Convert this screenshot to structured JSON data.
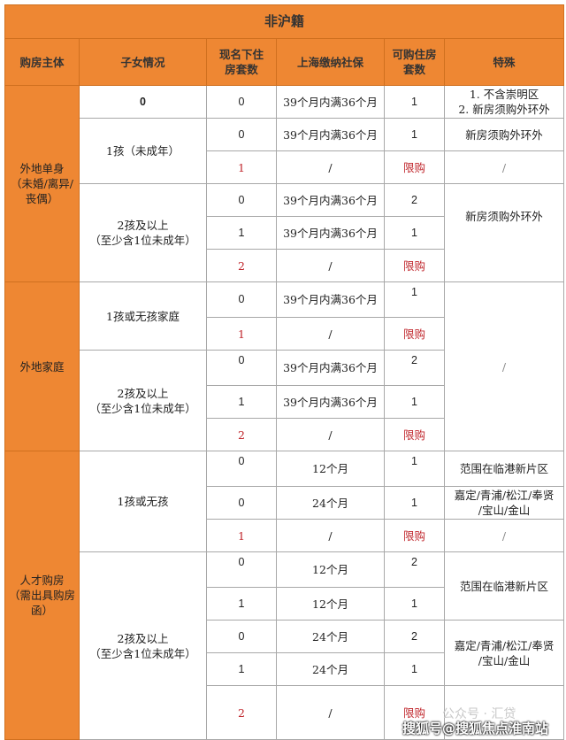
{
  "title": "非沪籍",
  "headers": [
    "购房主体",
    "子女情况",
    "现名下住房套数",
    "上海缴纳社保",
    "可购住房套数",
    "特殊"
  ],
  "subjects": [
    "外地单身\n（未婚/离异/丧偶）",
    "外地家庭",
    "人才购房\n（需出具购房函）"
  ],
  "children": {
    "none": "0",
    "one_minor": "1孩（未成年）",
    "two_plus": "2孩及以上\n（至少含1位未成年）",
    "one_or_none_family": "1孩或无孩家庭",
    "one_or_none": "1孩或无孩"
  },
  "special": {
    "no_chongming": "1. 不含崇明区\n2. 新房须购外环外",
    "outer_ring": "新房须购外环外",
    "slash": "/",
    "lingang": "范围在临港新片区",
    "districts": "嘉定/青浦/松江/奉贤\n/宝山/金山"
  },
  "rows": [
    {
      "owned": "0",
      "social": "39个月内满36个月",
      "allowed": "1"
    },
    {
      "owned": "0",
      "social": "39个月内满36个月",
      "allowed": "1"
    },
    {
      "owned": "1",
      "social": "/",
      "allowed": "限购"
    },
    {
      "owned": "0",
      "social": "39个月内满36个月",
      "allowed": "2"
    },
    {
      "owned": "1",
      "social": "39个月内满36个月",
      "allowed": "1"
    },
    {
      "owned": "2",
      "social": "/",
      "allowed": "限购"
    },
    {
      "owned": "0",
      "social": "39个月内满36个月",
      "allowed": "1"
    },
    {
      "owned": "1",
      "social": "/",
      "allowed": "限购"
    },
    {
      "owned": "0",
      "social": "39个月内满36个月",
      "allowed": "2"
    },
    {
      "owned": "1",
      "social": "39个月内满36个月",
      "allowed": "1"
    },
    {
      "owned": "2",
      "social": "/",
      "allowed": "限购"
    },
    {
      "owned": "0",
      "social": "12个月",
      "allowed": "1"
    },
    {
      "owned": "0",
      "social": "24个月",
      "allowed": "1"
    },
    {
      "owned": "1",
      "social": "/",
      "allowed": "限购"
    },
    {
      "owned": "0",
      "social": "12个月",
      "allowed": "2"
    },
    {
      "owned": "1",
      "social": "12个月",
      "allowed": "1"
    },
    {
      "owned": "0",
      "social": "24个月",
      "allowed": "2"
    },
    {
      "owned": "1",
      "social": "24个月",
      "allowed": "1"
    },
    {
      "owned": "2",
      "social": "/",
      "allowed": "限购"
    }
  ],
  "watermarks": [
    "公众号 · 汇贷",
    "搜狐号@搜狐焦点淮南站"
  ],
  "colors": {
    "header_bg": "#ee8733",
    "restricted_text": "#c0272d",
    "border": "#a8a8a8"
  }
}
